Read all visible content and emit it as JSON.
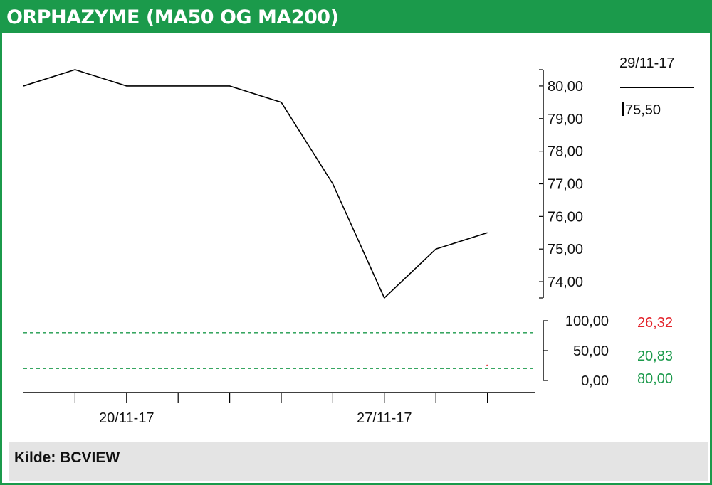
{
  "header": {
    "title": "ORPHAZYME (MA50 OG MA200)"
  },
  "footer": {
    "source": "Kilde: BCVIEW"
  },
  "chart_data": {
    "type": "line",
    "title": "ORPHAZYME (MA50 OG MA200)",
    "price": {
      "x_index": [
        0,
        1,
        2,
        3,
        4,
        5,
        6,
        7,
        8,
        9
      ],
      "values": [
        80.0,
        80.5,
        80.0,
        80.0,
        80.0,
        79.5,
        77.0,
        73.5,
        75.0,
        75.5
      ],
      "ylim": [
        73.5,
        80.5
      ],
      "yticks": [
        "80,00",
        "79,00",
        "78,00",
        "77,00",
        "76,00",
        "75,00",
        "74,00"
      ],
      "ytick_values": [
        80,
        79,
        78,
        77,
        76,
        75,
        74
      ]
    },
    "indicator": {
      "ylim": [
        0,
        100
      ],
      "yticks": [
        "100,00",
        "50,00",
        "0,00"
      ],
      "ytick_values": [
        100,
        50,
        0
      ],
      "reference_lines": [
        80,
        20
      ],
      "reference_color": "#1b9a4b"
    },
    "x_axis": {
      "tick_labels": [
        "20/11-17",
        "27/11-17"
      ],
      "tick_label_index": [
        2,
        7
      ],
      "tick_index": [
        1,
        2,
        3,
        4,
        5,
        6,
        7,
        8,
        9
      ]
    },
    "legend": {
      "date": "29/11-17",
      "last_price": "75,50",
      "values": [
        {
          "text": "26,32",
          "color": "#e3232b"
        },
        {
          "text": "20,83",
          "color": "#1b9a4b"
        },
        {
          "text": "80,00",
          "color": "#1b9a4b"
        }
      ]
    }
  }
}
